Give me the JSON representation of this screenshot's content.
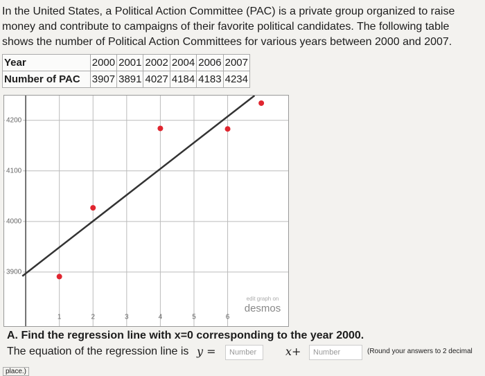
{
  "intro": "In the United States, a Political Action Committee (PAC) is a private group organized to raise money and contribute to campaigns of their favorite political candidates. The following table shows the number of Political Action Committees for various years between 2000 and 2007.",
  "table": {
    "rows": [
      [
        "Year",
        "2000",
        "2001",
        "2002",
        "2004",
        "2006",
        "2007"
      ],
      [
        "Number of PAC",
        "3907",
        "3891",
        "4027",
        "4184",
        "4183",
        "4234"
      ]
    ]
  },
  "graph": {
    "type": "scatter",
    "x": [
      1,
      2,
      4,
      6,
      7
    ],
    "y": [
      3891,
      4027,
      4184,
      4183,
      4234
    ],
    "point_color": "#e0252f",
    "line": {
      "x": [
        -0.1,
        6.8
      ],
      "y": [
        3892,
        4249
      ],
      "color": "#333333"
    },
    "xlim": [
      -0.64,
      7.8
    ],
    "ylim": [
      3793,
      4249
    ],
    "xticks": [
      1,
      2,
      3,
      4,
      5,
      6
    ],
    "yticks": [
      3900,
      4000,
      4100,
      4200
    ],
    "grid": true,
    "watermark": [
      "edit graph on",
      "desmos"
    ]
  },
  "question": {
    "label": "A. Find the regression line with x=0 corresponding to the year 2000.",
    "prompt": "The equation of the regression line is",
    "y_equals": "y =",
    "x_plus": "x+",
    "inputs": [
      "Number",
      "Number"
    ],
    "note": "(Round your answers to 2 decimal",
    "note_cont": "place.)"
  }
}
